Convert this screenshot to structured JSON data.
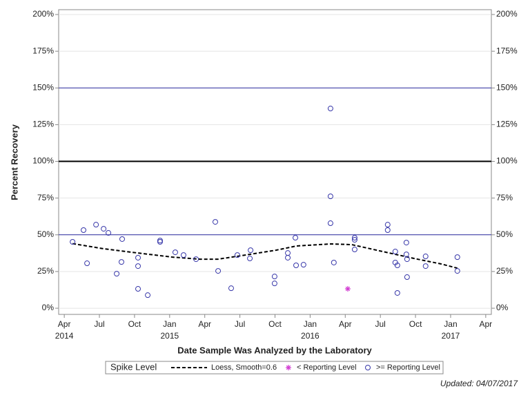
{
  "chart_data": {
    "type": "scatter",
    "y_label": "Percent Recovery",
    "x_label": "Date Sample Was Analyzed by the Laboratory",
    "footnote": "Updated: 04/07/2017",
    "legend_title": "Spike Level",
    "xlim": [
      2014.21,
      2017.29
    ],
    "ylim": [
      -4.2,
      203.3
    ],
    "grid": true,
    "xticks": [
      {
        "value": 2014.25,
        "label": "Apr 2014"
      },
      {
        "value": 2014.5,
        "label": "Jul"
      },
      {
        "value": 2014.75,
        "label": "Oct"
      },
      {
        "value": 2015,
        "label": "Jan 2015"
      },
      {
        "value": 2015.25,
        "label": "Apr"
      },
      {
        "value": 2015.5,
        "label": "Jul"
      },
      {
        "value": 2015.75,
        "label": "Oct"
      },
      {
        "value": 2016,
        "label": "Jan 2016"
      },
      {
        "value": 2016.25,
        "label": "Apr"
      },
      {
        "value": 2016.5,
        "label": "Jul"
      },
      {
        "value": 2016.75,
        "label": "Oct"
      },
      {
        "value": 2017,
        "label": "Jan 2017"
      },
      {
        "value": 2017.25,
        "label": "Apr"
      }
    ],
    "yticks": [
      {
        "value": 0,
        "label": "0%"
      },
      {
        "value": 25,
        "label": "25%"
      },
      {
        "value": 50,
        "label": "50%"
      },
      {
        "value": 75,
        "label": "75%"
      },
      {
        "value": 100,
        "label": "100%"
      },
      {
        "value": 125,
        "label": "125%"
      },
      {
        "value": 150,
        "label": "150%"
      },
      {
        "value": 175,
        "label": "175%"
      },
      {
        "value": 200,
        "label": "200%"
      }
    ],
    "reference_lines": [
      {
        "value": 50,
        "color": "#2a2aa0",
        "width": 1
      },
      {
        "value": 100,
        "color": "#000000",
        "width": 2
      },
      {
        "value": 150,
        "color": "#2a2aa0",
        "width": 1
      }
    ],
    "series": [
      {
        "name": "Loess, Smooth=0.6",
        "type": "line",
        "color": "#000000",
        "dashed": true,
        "x": [
          2014.309,
          2014.53,
          2014.775,
          2015.02,
          2015.216,
          2015.345,
          2015.511,
          2015.756,
          2015.904,
          2016.15,
          2016.297,
          2016.493,
          2016.739,
          2016.935,
          2017.048
        ],
        "values": [
          44,
          40.5,
          37.6,
          34.8,
          33.4,
          33.4,
          35.8,
          39.5,
          42.4,
          43.8,
          43.3,
          39.1,
          33.9,
          30.1,
          27.3
        ]
      },
      {
        "name": "< Reporting Level",
        "type": "scatter",
        "marker": "star",
        "color": "#d23cd2",
        "x": [
          2016.268
        ],
        "values": [
          13.2
        ]
      },
      {
        "name": ">= Reporting Level",
        "type": "scatter",
        "marker": "circle",
        "color": "#3535a8",
        "x": [
          2014.309,
          2014.387,
          2014.412,
          2014.476,
          2014.53,
          2014.564,
          2014.623,
          2014.657,
          2014.662,
          2014.775,
          2014.775,
          2014.775,
          2014.844,
          2014.932,
          2014.932,
          2015.04,
          2015.099,
          2015.188,
          2015.325,
          2015.345,
          2015.438,
          2015.482,
          2015.571,
          2015.576,
          2015.747,
          2015.747,
          2015.841,
          2015.841,
          2015.895,
          2015.9,
          2015.953,
          2016.145,
          2016.145,
          2016.145,
          2016.169,
          2016.317,
          2016.317,
          2016.317,
          2016.552,
          2016.552,
          2016.606,
          2016.606,
          2016.621,
          2016.621,
          2016.685,
          2016.685,
          2016.69,
          2016.69,
          2016.822,
          2016.822,
          2017.048,
          2017.048
        ],
        "values": [
          45.2,
          53.2,
          30.6,
          56.9,
          54.1,
          51.3,
          23.5,
          31.5,
          47.1,
          34.4,
          28.7,
          13.2,
          8.9,
          46.1,
          45.2,
          38.1,
          36.2,
          33.4,
          58.8,
          25.4,
          13.6,
          36.2,
          33.9,
          39.5,
          21.6,
          16.9,
          37.6,
          34.4,
          48.0,
          29.2,
          29.6,
          136.0,
          76.2,
          57.9,
          31.1,
          48.0,
          46.6,
          40.0,
          56.9,
          53.2,
          38.6,
          31.1,
          29.2,
          10.4,
          44.7,
          36.7,
          33.4,
          21.2,
          35.3,
          28.7,
          34.8,
          25.4
        ]
      }
    ]
  }
}
